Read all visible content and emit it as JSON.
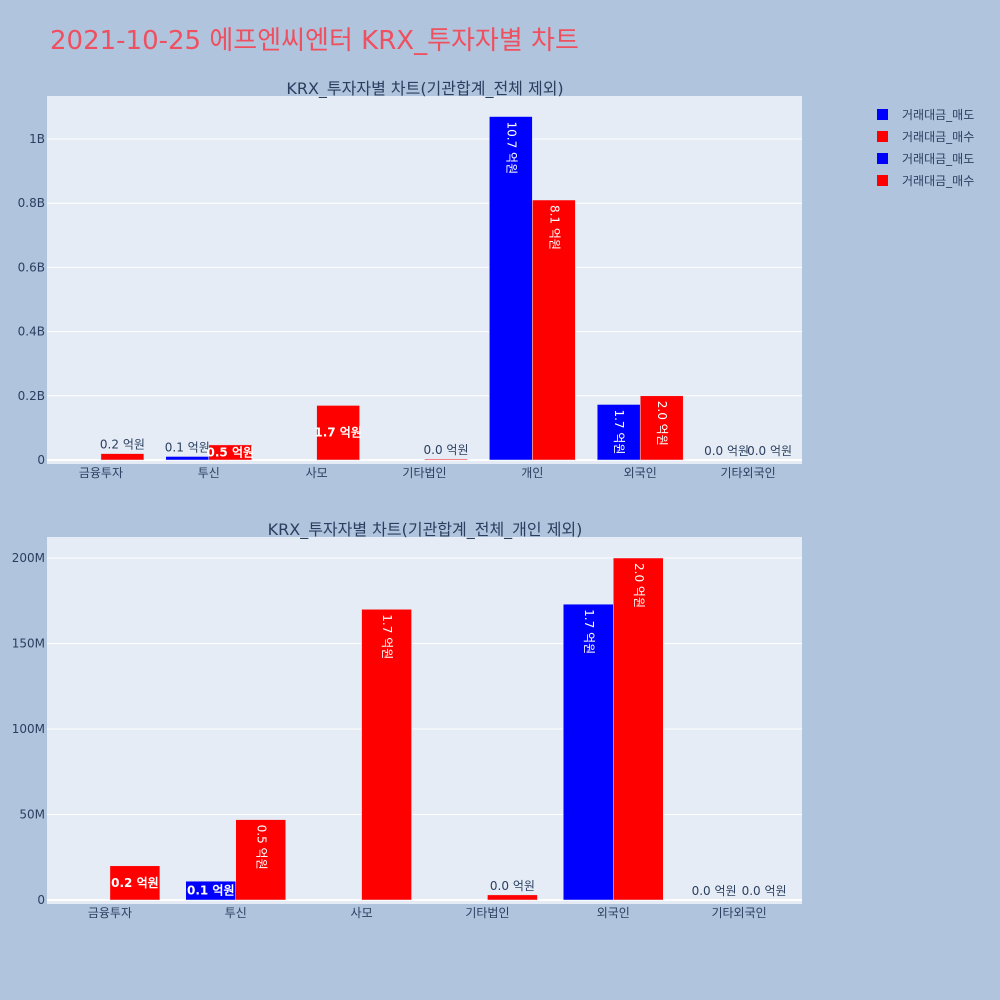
{
  "page": {
    "title": "2021-10-25 에프엔씨엔터 KRX_투자자별 차트",
    "title_color": "#ef5060",
    "background": "#b0c4de",
    "plot_background": "#e5ecf6"
  },
  "legend": {
    "position": "top-right",
    "entries": [
      {
        "label": "거래대금_매도",
        "color": "#0000ff"
      },
      {
        "label": "거래대금_매수",
        "color": "#ff0000"
      },
      {
        "label": "거래대금_매도",
        "color": "#0000ff"
      },
      {
        "label": "거래대금_매수",
        "color": "#ff0000"
      }
    ]
  },
  "chart_data": [
    {
      "type": "bar",
      "title": "KRX_투자자별 차트(기관합계_전체 제외)",
      "categories": [
        "금융투자",
        "투신",
        "사모",
        "기타법인",
        "개인",
        "외국인",
        "기타외국인"
      ],
      "ylim": [
        0,
        1120000000
      ],
      "yticks": [
        0,
        200000000,
        400000000,
        600000000,
        800000000,
        1000000000
      ],
      "yticklabels": [
        "0",
        "0.2B",
        "0.4B",
        "0.6B",
        "0.8B",
        "1B"
      ],
      "grid": true,
      "series": [
        {
          "name": "거래대금_매도",
          "color": "#0000ff",
          "values": [
            0,
            11000000,
            0,
            0,
            1070000000,
            173000000,
            0
          ],
          "labels": [
            "",
            "0.1 억원",
            "",
            "",
            "10.7 억원",
            "1.7 억원",
            "0.0 억원"
          ]
        },
        {
          "name": "거래대금_매수",
          "color": "#ff0000",
          "values": [
            20000000,
            47000000,
            170000000,
            3000000,
            810000000,
            200000000,
            0
          ],
          "labels": [
            "0.2 억원",
            "0.5 억원",
            "1.7 억원",
            "0.0 억원",
            "8.1 억원",
            "2.0 억원",
            "0.0 억원"
          ]
        }
      ]
    },
    {
      "type": "bar",
      "title": "KRX_투자자별 차트(기관합계_전체_개인 제외)",
      "categories": [
        "금융투자",
        "투신",
        "사모",
        "기타법인",
        "외국인",
        "기타외국인"
      ],
      "ylim": [
        0,
        210000000
      ],
      "yticks": [
        0,
        50000000,
        100000000,
        150000000,
        200000000
      ],
      "yticklabels": [
        "0",
        "50M",
        "100M",
        "150M",
        "200M"
      ],
      "grid": true,
      "series": [
        {
          "name": "거래대금_매도",
          "color": "#0000ff",
          "values": [
            0,
            11000000,
            0,
            0,
            173000000,
            0
          ],
          "labels": [
            "",
            "0.1 억원",
            "",
            "",
            "1.7 억원",
            "0.0 억원"
          ]
        },
        {
          "name": "거래대금_매수",
          "color": "#ff0000",
          "values": [
            20000000,
            47000000,
            170000000,
            3000000,
            200000000,
            0
          ],
          "labels": [
            "0.2 억원",
            "0.5 억원",
            "1.7 억원",
            "0.0 억원",
            "2.0 억원",
            "0.0 억원"
          ]
        }
      ]
    }
  ]
}
